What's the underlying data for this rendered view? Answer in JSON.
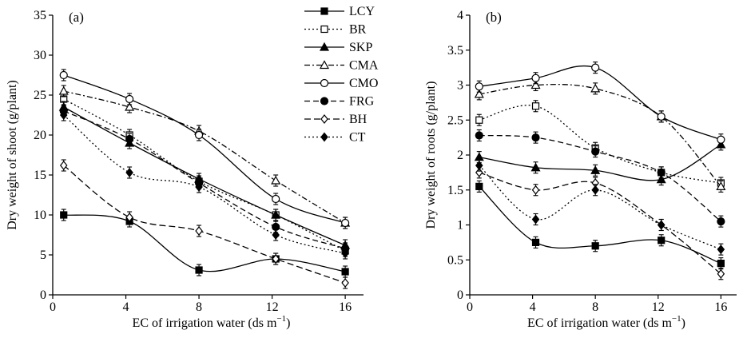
{
  "chart_data": [
    {
      "type": "line",
      "panel_label": "(a)",
      "xlabel": "EC of irrigation water (ds m",
      "xlabel_sup": "−1",
      "xlabel_end": ")",
      "ylabel": "Dry weight of shoot (g/plant)",
      "xlim": [
        0,
        17
      ],
      "ylim": [
        0,
        35
      ],
      "xticks": [
        0,
        4,
        8,
        12,
        16
      ],
      "yticks": [
        0,
        5,
        10,
        15,
        20,
        25,
        30,
        35
      ],
      "grid": false,
      "legend_position": "right",
      "x": [
        0.6,
        4.2,
        8,
        12.2,
        16
      ],
      "series": [
        {
          "name": "LCY",
          "values": [
            10,
            9.2,
            3.1,
            4.5,
            2.9
          ]
        },
        {
          "name": "BR",
          "values": [
            24.5,
            20,
            14.2,
            10,
            5.5
          ]
        },
        {
          "name": "SKP",
          "values": [
            23.5,
            19,
            14.5,
            10,
            6.2
          ]
        },
        {
          "name": "CMA",
          "values": [
            25.5,
            23.5,
            20.5,
            14.3,
            9
          ]
        },
        {
          "name": "CMO",
          "values": [
            27.5,
            24.5,
            20,
            12,
            9
          ]
        },
        {
          "name": "FRG",
          "values": [
            23,
            19.5,
            14,
            8.5,
            5.8
          ]
        },
        {
          "name": "BH",
          "values": [
            16.2,
            9.7,
            8,
            4.5,
            1.5
          ]
        },
        {
          "name": "CT",
          "values": [
            22.5,
            15.3,
            13.5,
            7.5,
            5.2
          ]
        }
      ]
    },
    {
      "type": "line",
      "panel_label": "(b)",
      "xlabel": "EC of irrigation water (ds m",
      "xlabel_sup": "−1",
      "xlabel_end": ")",
      "ylabel": "Dry weight of roots (g/plant)",
      "xlim": [
        0,
        17
      ],
      "ylim": [
        0,
        4
      ],
      "xticks": [
        0,
        4,
        8,
        12,
        16
      ],
      "yticks": [
        0,
        0.5,
        1,
        1.5,
        2,
        2.5,
        3,
        3.5,
        4
      ],
      "grid": false,
      "x": [
        0.6,
        4.2,
        8,
        12.2,
        16
      ],
      "series": [
        {
          "name": "LCY",
          "values": [
            1.55,
            0.75,
            0.7,
            0.78,
            0.45
          ]
        },
        {
          "name": "BR",
          "values": [
            2.5,
            2.7,
            2.1,
            1.75,
            1.6
          ]
        },
        {
          "name": "SKP",
          "values": [
            1.97,
            1.82,
            1.78,
            1.65,
            2.15
          ]
        },
        {
          "name": "CMA",
          "values": [
            2.87,
            3.0,
            2.95,
            2.55,
            1.55
          ]
        },
        {
          "name": "CMO",
          "values": [
            2.98,
            3.1,
            3.25,
            2.55,
            2.22
          ]
        },
        {
          "name": "FRG",
          "values": [
            2.28,
            2.25,
            2.05,
            1.75,
            1.05
          ]
        },
        {
          "name": "BH",
          "values": [
            1.75,
            1.5,
            1.6,
            1.0,
            0.3
          ]
        },
        {
          "name": "CT",
          "values": [
            1.85,
            1.08,
            1.5,
            1.0,
            0.65
          ]
        }
      ]
    }
  ],
  "legend": [
    "LCY",
    "BR",
    "SKP",
    "CMA",
    "CMO",
    "FRG",
    "BH",
    "CT"
  ]
}
